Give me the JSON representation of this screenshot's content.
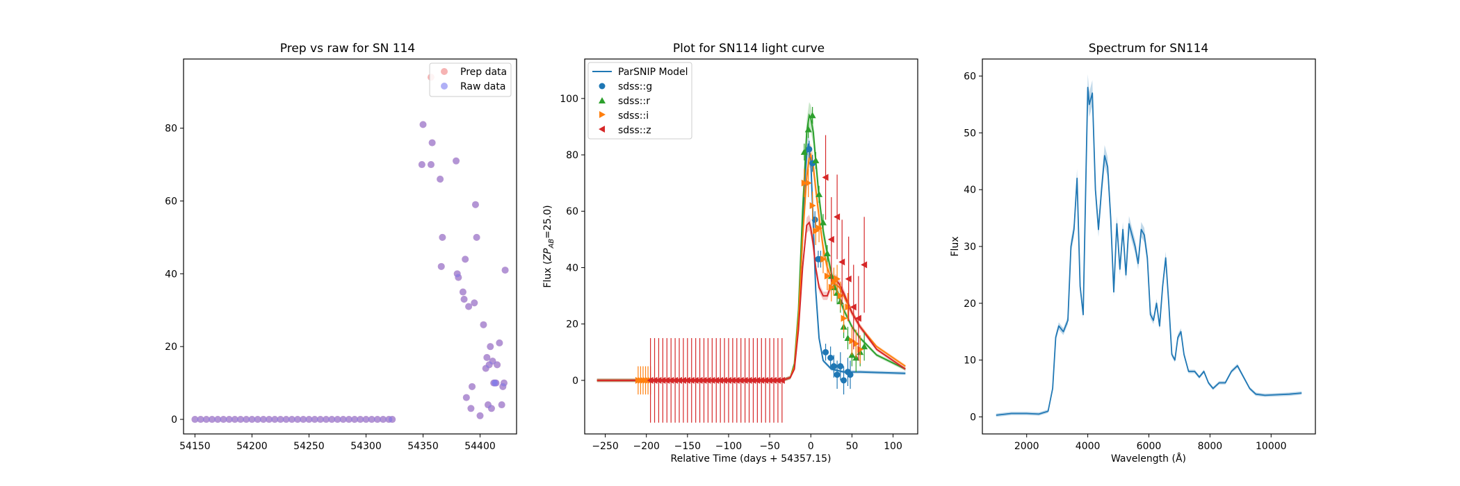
{
  "chart_data": [
    {
      "type": "scatter",
      "title": "Prep vs raw for SN 114",
      "xlabel": "",
      "ylabel": "",
      "xlim": [
        54140,
        54432
      ],
      "ylim": [
        -4,
        99
      ],
      "xticks": [
        54150,
        54200,
        54250,
        54300,
        54350,
        54400
      ],
      "yticks": [
        0,
        20,
        40,
        60,
        80
      ],
      "legend": {
        "position": "top-right"
      },
      "series": [
        {
          "name": "Prep data",
          "color": "#f08080",
          "x": [
            54150,
            54155,
            54160,
            54165,
            54170,
            54175,
            54180,
            54185,
            54190,
            54195,
            54200,
            54205,
            54210,
            54215,
            54220,
            54225,
            54230,
            54235,
            54240,
            54245,
            54250,
            54255,
            54260,
            54265,
            54270,
            54275,
            54280,
            54285,
            54290,
            54295,
            54300,
            54305,
            54310,
            54315,
            54320,
            54323,
            54349,
            54350,
            54357,
            54358,
            54365,
            54366,
            54367,
            54379,
            54380,
            54381,
            54385,
            54386,
            54387,
            54388,
            54390,
            54392,
            54393,
            54395,
            54396,
            54397,
            54400,
            54403,
            54405,
            54406,
            54407,
            54408,
            54409,
            54410,
            54411,
            54412,
            54413,
            54414,
            54415,
            54417,
            54419,
            54420,
            54421,
            54422
          ],
          "y": [
            0,
            0,
            0,
            0,
            0,
            0,
            0,
            0,
            0,
            0,
            0,
            0,
            0,
            0,
            0,
            0,
            0,
            0,
            0,
            0,
            0,
            0,
            0,
            0,
            0,
            0,
            0,
            0,
            0,
            0,
            0,
            0,
            0,
            0,
            0,
            0,
            70,
            81,
            70,
            76,
            66,
            42,
            50,
            71,
            40,
            39,
            35,
            33,
            44,
            6,
            31,
            3,
            9,
            32,
            59,
            50,
            1,
            26,
            14,
            17,
            4,
            15,
            20,
            3,
            16,
            10,
            10,
            10,
            15,
            21,
            4,
            9,
            10,
            41
          ]
        },
        {
          "name": "Raw data",
          "color": "#7b7bf0",
          "x": [
            54150,
            54155,
            54160,
            54165,
            54170,
            54175,
            54180,
            54185,
            54190,
            54195,
            54200,
            54205,
            54210,
            54215,
            54220,
            54225,
            54230,
            54235,
            54240,
            54245,
            54250,
            54255,
            54260,
            54265,
            54270,
            54275,
            54280,
            54285,
            54290,
            54295,
            54300,
            54305,
            54310,
            54315,
            54320,
            54323,
            54349,
            54350,
            54357,
            54358,
            54365,
            54366,
            54367,
            54379,
            54380,
            54381,
            54385,
            54386,
            54387,
            54388,
            54390,
            54392,
            54393,
            54395,
            54396,
            54397,
            54400,
            54403,
            54405,
            54406,
            54407,
            54408,
            54409,
            54410,
            54411,
            54412,
            54413,
            54414,
            54415,
            54417,
            54419,
            54420,
            54421,
            54422
          ],
          "y": [
            0,
            0,
            0,
            0,
            0,
            0,
            0,
            0,
            0,
            0,
            0,
            0,
            0,
            0,
            0,
            0,
            0,
            0,
            0,
            0,
            0,
            0,
            0,
            0,
            0,
            0,
            0,
            0,
            0,
            0,
            0,
            0,
            0,
            0,
            0,
            0,
            70,
            81,
            70,
            76,
            66,
            42,
            50,
            71,
            40,
            39,
            35,
            33,
            44,
            6,
            31,
            3,
            9,
            32,
            59,
            50,
            1,
            26,
            14,
            17,
            4,
            15,
            20,
            3,
            16,
            10,
            10,
            10,
            15,
            21,
            4,
            9,
            10,
            41
          ]
        },
        {
          "name": "",
          "color": "#f08080",
          "x": [
            54357
          ],
          "y": [
            94
          ]
        }
      ]
    },
    {
      "type": "line",
      "title": "Plot for SN114 light curve",
      "xlabel": "Relative Time (days + 54357.15)",
      "ylabel": "Flux (ZP_AB=25.0)",
      "ylabel_parts": [
        "Flux (",
        "ZP",
        "AB",
        "=25.0)"
      ],
      "xlim": [
        -275,
        130
      ],
      "ylim": [
        -19,
        114
      ],
      "xticks": [
        -250,
        -200,
        -150,
        -100,
        -50,
        0,
        50,
        100
      ],
      "xtick_labels": [
        "−250",
        "−200",
        "−150",
        "−100",
        "−50",
        "0",
        "50",
        "100"
      ],
      "yticks": [
        0,
        20,
        40,
        60,
        80,
        100
      ],
      "legend": {
        "position": "top-left"
      },
      "models": [
        {
          "name": "ParSNIP Model",
          "color": "#1f77b4",
          "x": [
            -260,
            -50,
            -35,
            -25,
            -20,
            -15,
            -10,
            -7,
            -5,
            -3,
            0,
            3,
            6,
            10,
            15,
            25,
            40,
            60,
            80,
            115
          ],
          "y": [
            0,
            0,
            0,
            1,
            5,
            20,
            50,
            72,
            80,
            84,
            78,
            55,
            32,
            15,
            7,
            4,
            3,
            3,
            2.8,
            2.5
          ]
        },
        {
          "name": "",
          "color": "#2ca02c",
          "x": [
            -260,
            -50,
            -35,
            -25,
            -20,
            -15,
            -10,
            -5,
            -2,
            0,
            3,
            6,
            10,
            15,
            20,
            25,
            30,
            35,
            40,
            50,
            60,
            80,
            115
          ],
          "y": [
            0,
            0,
            0,
            1,
            6,
            25,
            60,
            88,
            94,
            93,
            88,
            78,
            65,
            53,
            45,
            38,
            33,
            29,
            25,
            19,
            15,
            9,
            4
          ]
        },
        {
          "name": "",
          "color": "#ff7f0e",
          "x": [
            -260,
            -50,
            -35,
            -25,
            -20,
            -15,
            -10,
            -5,
            -2,
            0,
            3,
            6,
            10,
            15,
            20,
            25,
            30,
            35,
            40,
            50,
            60,
            80,
            115
          ],
          "y": [
            0,
            0,
            0,
            1,
            5,
            22,
            50,
            72,
            79,
            80,
            76,
            68,
            58,
            47,
            40,
            36,
            34,
            33,
            30,
            24,
            19,
            12,
            5
          ]
        },
        {
          "name": "",
          "color": "#d62728",
          "x": [
            -260,
            -50,
            -35,
            -25,
            -20,
            -15,
            -10,
            -5,
            -2,
            0,
            3,
            6,
            10,
            15,
            20,
            25,
            30,
            35,
            40,
            50,
            60,
            80,
            115
          ],
          "y": [
            0,
            0,
            0,
            1,
            4,
            18,
            40,
            55,
            56,
            54,
            48,
            40,
            33,
            30,
            30,
            34,
            36,
            34,
            31,
            24,
            19,
            11,
            4
          ]
        }
      ],
      "series": [
        {
          "name": "sdss::g",
          "color": "#1f77b4",
          "marker": "o",
          "x": [
            -2,
            2,
            5,
            9,
            12,
            18,
            24,
            28,
            32,
            36,
            40,
            45,
            48
          ],
          "y": [
            82,
            77,
            57,
            43,
            43,
            10,
            8,
            5,
            2,
            5,
            0,
            3,
            2
          ],
          "err": [
            3,
            3,
            3,
            3,
            3,
            3,
            4,
            4,
            5,
            5,
            5,
            5,
            5
          ]
        },
        {
          "name": "sdss::r",
          "color": "#2ca02c",
          "marker": "^",
          "x": [
            -8,
            -3,
            2,
            6,
            10,
            15,
            20,
            25,
            28,
            32,
            36,
            40,
            45,
            50,
            55,
            60,
            65
          ],
          "y": [
            81,
            89,
            94,
            78,
            66,
            56,
            45,
            37,
            33,
            31,
            28,
            19,
            15,
            9,
            8,
            10,
            12
          ],
          "err": [
            3,
            3,
            3,
            3,
            3,
            3,
            3,
            3,
            3,
            4,
            4,
            4,
            4,
            4,
            5,
            5,
            5
          ]
        },
        {
          "name": "sdss::i",
          "color": "#ff7f0e",
          "marker": ">",
          "x": [
            -210,
            -207,
            -204,
            -201,
            -198,
            -195,
            -8,
            -3,
            2,
            6,
            10,
            15,
            20,
            25,
            28,
            32,
            36,
            40,
            45,
            50,
            55,
            60
          ],
          "y": [
            0,
            0,
            0,
            0,
            0,
            0,
            70,
            70,
            62,
            53,
            54,
            43,
            37,
            33,
            35,
            36,
            30,
            22,
            26,
            14,
            13,
            11
          ],
          "err": [
            5,
            5,
            5,
            5,
            5,
            5,
            5,
            5,
            5,
            5,
            5,
            5,
            5,
            5,
            5,
            5,
            5,
            5,
            5,
            5,
            5,
            5
          ]
        },
        {
          "name": "sdss::z",
          "color": "#d62728",
          "marker": "<",
          "x": [
            -195,
            -190,
            -185,
            -180,
            -175,
            -170,
            -165,
            -160,
            -155,
            -150,
            -145,
            -140,
            -135,
            -130,
            -125,
            -120,
            -115,
            -110,
            -105,
            -100,
            -95,
            -90,
            -85,
            -80,
            -75,
            -70,
            -65,
            -60,
            -55,
            -50,
            -45,
            -40,
            -35,
            18,
            25,
            32,
            38,
            46,
            52,
            58,
            65
          ],
          "y": [
            0,
            0,
            0,
            0,
            0,
            0,
            0,
            0,
            0,
            0,
            0,
            0,
            0,
            0,
            0,
            0,
            0,
            0,
            0,
            0,
            0,
            0,
            0,
            0,
            0,
            0,
            0,
            0,
            0,
            0,
            0,
            0,
            0,
            72,
            50,
            58,
            42,
            36,
            26,
            22,
            41
          ],
          "err": [
            15,
            15,
            15,
            15,
            15,
            15,
            15,
            15,
            15,
            15,
            15,
            15,
            15,
            15,
            15,
            15,
            15,
            15,
            15,
            15,
            15,
            15,
            15,
            15,
            15,
            15,
            15,
            15,
            15,
            15,
            15,
            15,
            15,
            15,
            15,
            15,
            15,
            15,
            15,
            15,
            17
          ]
        }
      ]
    },
    {
      "type": "line",
      "title": "Spectrum for SN114",
      "xlabel": "Wavelength (Å)",
      "ylabel": "Flux",
      "xlim": [
        550,
        11450
      ],
      "ylim": [
        -3,
        63
      ],
      "xticks": [
        2000,
        4000,
        6000,
        8000,
        10000
      ],
      "yticks": [
        0,
        10,
        20,
        30,
        40,
        50,
        60
      ],
      "series": [
        {
          "name": "",
          "color": "#1f77b4",
          "x": [
            1000,
            1500,
            2000,
            2400,
            2700,
            2850,
            2950,
            3050,
            3200,
            3350,
            3450,
            3550,
            3650,
            3750,
            3850,
            3950,
            4000,
            4050,
            4150,
            4250,
            4350,
            4450,
            4550,
            4650,
            4750,
            4850,
            4950,
            5050,
            5150,
            5250,
            5350,
            5450,
            5550,
            5650,
            5750,
            5850,
            5950,
            6050,
            6150,
            6250,
            6350,
            6450,
            6550,
            6650,
            6750,
            6850,
            6950,
            7050,
            7150,
            7300,
            7500,
            7650,
            7800,
            7950,
            8100,
            8300,
            8500,
            8700,
            8900,
            9100,
            9300,
            9500,
            9800,
            10200,
            10600,
            11000
          ],
          "y": [
            0.3,
            0.6,
            0.6,
            0.5,
            1,
            5,
            14,
            16,
            15,
            17,
            30,
            33,
            42,
            23,
            18,
            45,
            58,
            55,
            57,
            40,
            33,
            40,
            46,
            44,
            35,
            22,
            34,
            26,
            33,
            25,
            34,
            32,
            30,
            27,
            33,
            32,
            28,
            18,
            17,
            20,
            16,
            23,
            28,
            20,
            11,
            10,
            14,
            15,
            11,
            8,
            8,
            7,
            8,
            6,
            5,
            6,
            6,
            8,
            9,
            7,
            5,
            4,
            3.8,
            3.9,
            4,
            4.2
          ]
        }
      ]
    }
  ]
}
